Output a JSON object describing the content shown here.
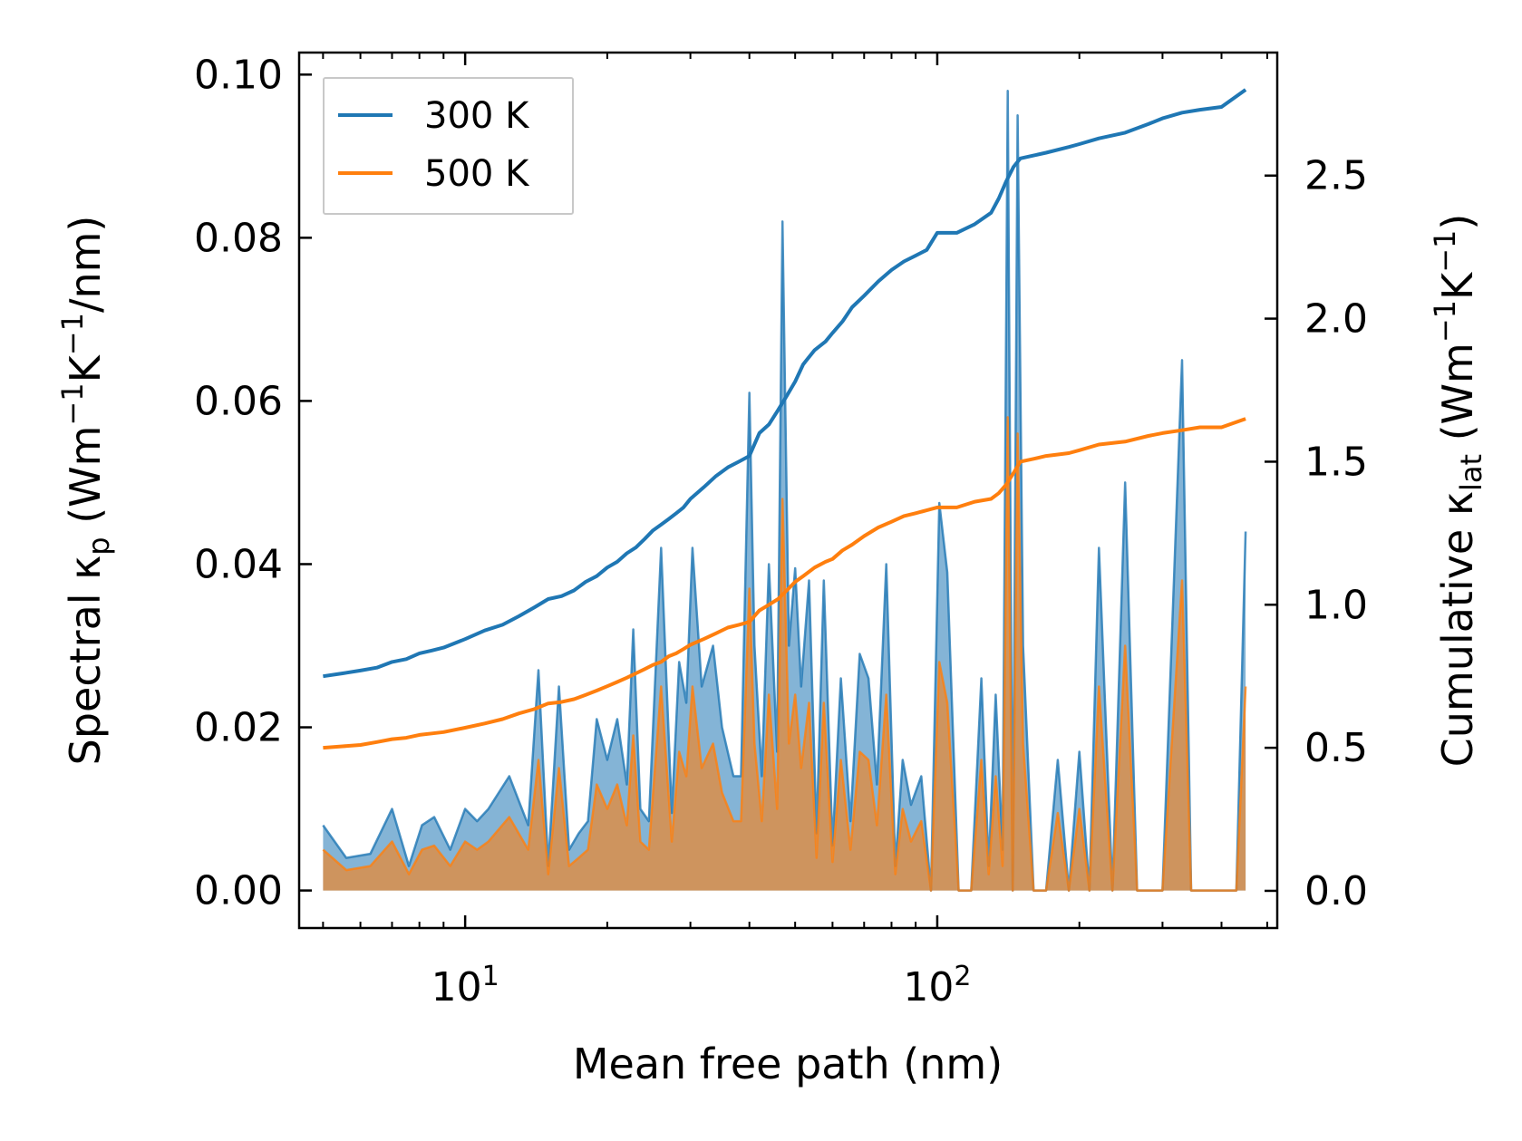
{
  "chart_data": {
    "type": "line",
    "xlabel": "Mean free path (nm)",
    "ylabel_left": {
      "prefix": "Spectral κ",
      "sub": "p",
      "unit_open": " (Wm",
      "sup1": "−1",
      "unit_mid": "K",
      "sup2": "−1",
      "unit_close": "/nm)"
    },
    "ylabel_right": {
      "prefix": "Cumulative κ",
      "sub": "lat",
      "unit_open": " (Wm",
      "sup1": "−1",
      "unit_mid": "K",
      "sup2": "−1",
      "unit_close": ")"
    },
    "xscale": "log",
    "xlim": [
      4.45,
      525
    ],
    "ylim_left": [
      -0.0046,
      0.1027
    ],
    "ylim_right": [
      -0.13,
      2.93
    ],
    "x_ticks": [
      {
        "value": 10,
        "base": "10",
        "exp": "1"
      },
      {
        "value": 100,
        "base": "10",
        "exp": "2"
      }
    ],
    "y_ticks_left": [
      {
        "value": 0.0,
        "label": "0.00"
      },
      {
        "value": 0.02,
        "label": "0.02"
      },
      {
        "value": 0.04,
        "label": "0.04"
      },
      {
        "value": 0.06,
        "label": "0.06"
      },
      {
        "value": 0.08,
        "label": "0.08"
      },
      {
        "value": 0.1,
        "label": "0.10"
      }
    ],
    "y_ticks_right": [
      {
        "value": 0.0,
        "label": "0.0"
      },
      {
        "value": 0.5,
        "label": "0.5"
      },
      {
        "value": 1.0,
        "label": "1.0"
      },
      {
        "value": 1.5,
        "label": "1.5"
      },
      {
        "value": 2.0,
        "label": "2.0"
      },
      {
        "value": 2.5,
        "label": "2.5"
      }
    ],
    "legend": {
      "position": "upper-left",
      "entries": [
        {
          "label": "300 K",
          "color": "#1f77b4"
        },
        {
          "label": "500 K",
          "color": "#ff7f0e"
        }
      ]
    },
    "series": [
      {
        "name": "300 K",
        "color": "#1f77b4",
        "spectral": {
          "x": [
            5,
            5.6,
            6.3,
            7,
            7.6,
            8.1,
            8.6,
            9.3,
            10,
            10.6,
            11.2,
            12.4,
            13.6,
            14.3,
            15,
            15.8,
            16.6,
            17.4,
            18.2,
            19,
            20,
            21,
            22,
            22.7,
            23.5,
            24.5,
            26,
            27.4,
            28.4,
            29.4,
            30.3,
            31.7,
            33.5,
            35,
            37,
            38.4,
            40,
            41,
            42.5,
            44,
            45.8,
            47,
            48.5,
            50,
            51.5,
            53.5,
            55.5,
            57.5,
            60,
            62.5,
            65.5,
            68.5,
            71.5,
            74.5,
            78,
            81.5,
            84.5,
            88,
            92.5,
            97,
            101,
            105,
            111,
            118,
            124,
            128.5,
            133,
            137.5,
            141,
            144.5,
            148,
            152,
            160,
            170,
            180,
            190,
            200,
            210,
            220,
            235,
            250,
            265,
            280,
            300,
            330,
            345,
            360,
            400,
            430,
            450
          ],
          "y": [
            0.008,
            0.004,
            0.0045,
            0.01,
            0.003,
            0.008,
            0.009,
            0.005,
            0.01,
            0.0085,
            0.01,
            0.014,
            0.008,
            0.027,
            0.003,
            0.025,
            0.005,
            0.007,
            0.0085,
            0.021,
            0.016,
            0.021,
            0.013,
            0.032,
            0.01,
            0.0085,
            0.042,
            0.0095,
            0.028,
            0.023,
            0.042,
            0.025,
            0.03,
            0.02,
            0.014,
            0.014,
            0.061,
            0.03,
            0.014,
            0.04,
            0.017,
            0.082,
            0.03,
            0.0395,
            0.025,
            0.038,
            0.007,
            0.038,
            0.0055,
            0.026,
            0.0085,
            0.029,
            0.026,
            0.013,
            0.04,
            0.003,
            0.016,
            0.0105,
            0.014,
            0.0,
            0.0475,
            0.039,
            0.0,
            0.0,
            0.026,
            0.003,
            0.024,
            0.005,
            0.098,
            0.0,
            0.095,
            0.03,
            0.0,
            0.0,
            0.016,
            0.0,
            0.017,
            0.0,
            0.042,
            0.0,
            0.05,
            0.0,
            0.0,
            0.0,
            0.065,
            0.0,
            0.0,
            0.0,
            0.0,
            0.044
          ]
        },
        "cumulative": {
          "x": [
            5,
            5.5,
            6,
            6.5,
            7,
            7.5,
            8,
            8.5,
            9,
            10,
            11,
            12,
            13,
            14,
            15,
            16,
            17,
            18,
            19,
            20,
            21,
            22,
            23,
            24,
            25,
            26,
            27,
            28,
            29,
            30,
            32,
            34,
            36,
            38,
            40,
            42,
            44,
            46,
            48,
            50,
            52,
            55,
            58,
            60,
            63,
            66,
            70,
            75,
            80,
            85,
            90,
            95,
            100,
            110,
            120,
            130,
            135,
            140,
            145,
            150,
            160,
            170,
            190,
            200,
            220,
            250,
            280,
            300,
            330,
            360,
            400,
            450
          ],
          "y": [
            0.75,
            0.76,
            0.77,
            0.78,
            0.8,
            0.81,
            0.83,
            0.84,
            0.85,
            0.88,
            0.91,
            0.93,
            0.96,
            0.99,
            1.02,
            1.03,
            1.05,
            1.08,
            1.1,
            1.13,
            1.15,
            1.18,
            1.2,
            1.23,
            1.26,
            1.28,
            1.3,
            1.32,
            1.34,
            1.37,
            1.41,
            1.45,
            1.48,
            1.5,
            1.52,
            1.6,
            1.63,
            1.68,
            1.73,
            1.78,
            1.84,
            1.89,
            1.92,
            1.95,
            1.99,
            2.04,
            2.08,
            2.13,
            2.17,
            2.2,
            2.22,
            2.24,
            2.3,
            2.3,
            2.33,
            2.37,
            2.42,
            2.48,
            2.53,
            2.56,
            2.57,
            2.58,
            2.6,
            2.61,
            2.63,
            2.65,
            2.68,
            2.7,
            2.72,
            2.73,
            2.74,
            2.8
          ]
        }
      },
      {
        "name": "500 K",
        "color": "#ff7f0e",
        "spectral": {
          "x": [
            5,
            5.6,
            6.3,
            7,
            7.6,
            8.1,
            8.6,
            9.3,
            10,
            10.6,
            11.2,
            12.4,
            13.6,
            14.3,
            15,
            15.8,
            16.6,
            17.4,
            18.2,
            19,
            20,
            21,
            22,
            22.7,
            23.5,
            24.5,
            26,
            27.4,
            28.4,
            29.4,
            30.3,
            31.7,
            33.5,
            35,
            37,
            38.4,
            40,
            41,
            42.5,
            44,
            45.8,
            47,
            48.5,
            50,
            51.5,
            53.5,
            55.5,
            57.5,
            60,
            62.5,
            65.5,
            68.5,
            71.5,
            74.5,
            78,
            81.5,
            84.5,
            88,
            92.5,
            97,
            101,
            105,
            111,
            118,
            124,
            128.5,
            133,
            137.5,
            141,
            144.5,
            148,
            152,
            160,
            170,
            180,
            190,
            200,
            210,
            220,
            235,
            250,
            265,
            280,
            300,
            330,
            345,
            360,
            400,
            430,
            450
          ],
          "y": [
            0.005,
            0.0025,
            0.003,
            0.006,
            0.002,
            0.005,
            0.0055,
            0.003,
            0.006,
            0.005,
            0.006,
            0.009,
            0.005,
            0.016,
            0.002,
            0.015,
            0.003,
            0.004,
            0.005,
            0.013,
            0.01,
            0.013,
            0.008,
            0.019,
            0.006,
            0.005,
            0.025,
            0.006,
            0.017,
            0.014,
            0.025,
            0.015,
            0.018,
            0.012,
            0.0085,
            0.0085,
            0.037,
            0.018,
            0.0085,
            0.024,
            0.01,
            0.048,
            0.018,
            0.024,
            0.015,
            0.023,
            0.004,
            0.023,
            0.0035,
            0.016,
            0.005,
            0.017,
            0.016,
            0.008,
            0.024,
            0.002,
            0.01,
            0.006,
            0.0085,
            0.0,
            0.028,
            0.023,
            0.0,
            0.0,
            0.016,
            0.002,
            0.014,
            0.003,
            0.058,
            0.0,
            0.056,
            0.018,
            0.0,
            0.0,
            0.0095,
            0.0,
            0.01,
            0.0,
            0.025,
            0.0,
            0.03,
            0.0,
            0.0,
            0.0,
            0.038,
            0.0,
            0.0,
            0.0,
            0.0,
            0.025
          ]
        },
        "cumulative": {
          "x": [
            5,
            5.5,
            6,
            6.5,
            7,
            7.5,
            8,
            8.5,
            9,
            10,
            11,
            12,
            13,
            14,
            15,
            16,
            17,
            18,
            19,
            20,
            21,
            22,
            23,
            24,
            25,
            26,
            27,
            28,
            29,
            30,
            32,
            34,
            36,
            38,
            40,
            42,
            44,
            46,
            48,
            50,
            52,
            55,
            58,
            60,
            63,
            66,
            70,
            75,
            80,
            85,
            90,
            95,
            100,
            110,
            120,
            130,
            135,
            140,
            145,
            150,
            160,
            170,
            190,
            200,
            220,
            250,
            280,
            300,
            330,
            360,
            400,
            450
          ],
          "y": [
            0.5,
            0.505,
            0.51,
            0.52,
            0.53,
            0.535,
            0.545,
            0.55,
            0.555,
            0.57,
            0.585,
            0.6,
            0.62,
            0.635,
            0.655,
            0.66,
            0.67,
            0.685,
            0.7,
            0.715,
            0.73,
            0.745,
            0.76,
            0.775,
            0.79,
            0.8,
            0.82,
            0.83,
            0.845,
            0.86,
            0.88,
            0.9,
            0.92,
            0.93,
            0.94,
            0.98,
            1.0,
            1.02,
            1.05,
            1.08,
            1.1,
            1.13,
            1.15,
            1.16,
            1.19,
            1.21,
            1.24,
            1.27,
            1.29,
            1.31,
            1.32,
            1.33,
            1.34,
            1.34,
            1.36,
            1.37,
            1.39,
            1.42,
            1.46,
            1.5,
            1.51,
            1.52,
            1.53,
            1.54,
            1.56,
            1.57,
            1.59,
            1.6,
            1.61,
            1.62,
            1.62,
            1.65
          ]
        }
      }
    ]
  }
}
